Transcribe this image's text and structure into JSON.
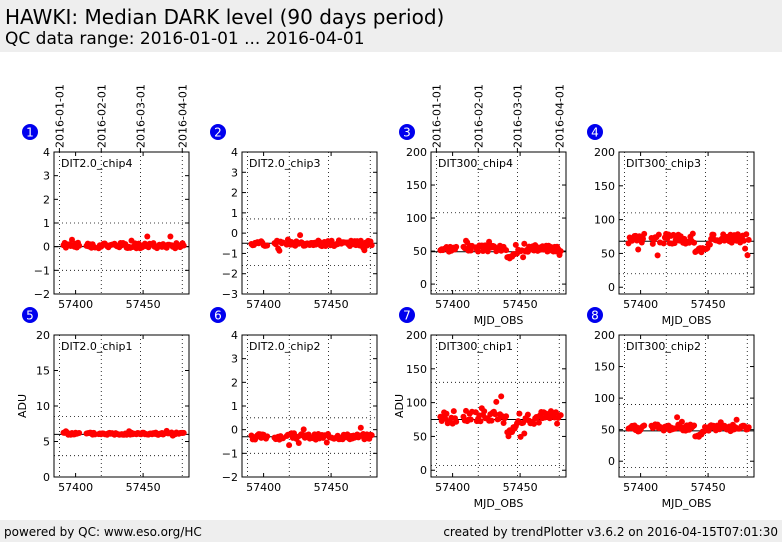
{
  "header": {
    "title": "HAWKI: Median DARK level (90 days period)",
    "subtitle": "QC data range: 2016-01-01 ... 2016-04-01"
  },
  "footer": {
    "left": "powered by QC: www.eso.org/HC",
    "right": "created by trendPlotter v3.6.2 on 2016-04-15T07:01:30"
  },
  "colors": {
    "points": "#ff0000",
    "badge": "#0000ee",
    "badge_text": "#ffffff"
  },
  "chart_data": [
    {
      "type": "scatter",
      "badge": "1",
      "label": "DIT2.0_chip4",
      "ylabel": "",
      "xlabel": "",
      "xlim": [
        57384,
        57484
      ],
      "ylim": [
        -2,
        4
      ],
      "yticks": [
        -2,
        -1,
        0,
        1,
        2,
        3,
        4
      ],
      "xticks": [
        57400,
        57450
      ],
      "ydotted": [
        -1,
        1
      ],
      "refline": 0,
      "center": 0.05,
      "amp": 0.12,
      "dip": null,
      "seed": 1,
      "date_ticks": [
        {
          "mjd": 57388,
          "label": "2016-01-01"
        },
        {
          "mjd": 57419,
          "label": "2016-02-01"
        },
        {
          "mjd": 57448,
          "label": "2016-03-01"
        },
        {
          "mjd": 57479,
          "label": "2016-04-01"
        }
      ]
    },
    {
      "type": "scatter",
      "badge": "2",
      "label": "DIT2.0_chip3",
      "ylabel": "",
      "xlabel": "",
      "xlim": [
        57384,
        57484
      ],
      "ylim": [
        -3,
        4
      ],
      "yticks": [
        -3,
        -2,
        -1,
        0,
        1,
        2,
        3,
        4
      ],
      "xticks": [
        57400,
        57450
      ],
      "ydotted": [
        -1.6,
        0.7
      ],
      "refline": -0.5,
      "center": -0.5,
      "amp": 0.14,
      "dip": null,
      "seed": 2,
      "date_ticks": []
    },
    {
      "type": "scatter",
      "badge": "3",
      "label": "DIT300_chip4",
      "ylabel": "",
      "xlabel": "MJD_OBS",
      "xlim": [
        57384,
        57484
      ],
      "ylim": [
        -15,
        200
      ],
      "yticks": [
        0,
        50,
        100,
        150,
        200
      ],
      "xticks": [
        57400,
        57450
      ],
      "ydotted": [
        -10,
        108
      ],
      "refline": 49,
      "center": 54,
      "amp": 5,
      "dip": {
        "start": 57440,
        "end": 57448,
        "value": 38
      },
      "seed": 3,
      "date_ticks": [
        {
          "mjd": 57388,
          "label": "2016-01-01"
        },
        {
          "mjd": 57419,
          "label": "2016-02-01"
        },
        {
          "mjd": 57448,
          "label": "2016-03-01"
        },
        {
          "mjd": 57479,
          "label": "2016-04-01"
        }
      ]
    },
    {
      "type": "scatter",
      "badge": "4",
      "label": "DIT300_chip3",
      "ylabel": "",
      "xlabel": "MJD_OBS",
      "xlim": [
        57384,
        57484
      ],
      "ylim": [
        -10,
        200
      ],
      "yticks": [
        0,
        50,
        100,
        150,
        200
      ],
      "xticks": [
        57400,
        57450
      ],
      "ydotted": [
        20,
        110
      ],
      "refline": 68,
      "center": 72,
      "amp": 8,
      "dip": {
        "start": 57440,
        "end": 57452,
        "value": 50
      },
      "seed": 4,
      "date_ticks": []
    },
    {
      "type": "scatter",
      "badge": "5",
      "label": "DIT2.0_chip1",
      "ylabel": "ADU",
      "xlabel": "",
      "xlim": [
        57384,
        57484
      ],
      "ylim": [
        0,
        20
      ],
      "yticks": [
        0,
        5,
        10,
        15,
        20
      ],
      "xticks": [
        57400,
        57450
      ],
      "ydotted": [
        3,
        8.5
      ],
      "refline": 6,
      "center": 6.1,
      "amp": 0.18,
      "dip": null,
      "seed": 5,
      "date_ticks": []
    },
    {
      "type": "scatter",
      "badge": "6",
      "label": "DIT2.0_chip2",
      "ylabel": "",
      "xlabel": "",
      "xlim": [
        57384,
        57484
      ],
      "ylim": [
        -2,
        4
      ],
      "yticks": [
        -2,
        -1,
        0,
        1,
        2,
        3,
        4
      ],
      "xticks": [
        57400,
        57450
      ],
      "ydotted": [
        -1,
        0.5
      ],
      "refline": -0.3,
      "center": -0.3,
      "amp": 0.12,
      "dip": null,
      "seed": 6,
      "date_ticks": []
    },
    {
      "type": "scatter",
      "badge": "7",
      "label": "DIT300_chip1",
      "ylabel": "ADU",
      "xlabel": "MJD_OBS",
      "xlim": [
        57384,
        57484
      ],
      "ylim": [
        -10,
        200
      ],
      "yticks": [
        0,
        50,
        100,
        150,
        200
      ],
      "xticks": [
        57400,
        57450
      ],
      "ydotted": [
        7,
        130
      ],
      "refline": 75,
      "center": 78,
      "amp": 10,
      "dip": {
        "start": 57440,
        "end": 57447,
        "value": 52
      },
      "seed": 7,
      "date_ticks": []
    },
    {
      "type": "scatter",
      "badge": "8",
      "label": "DIT300_chip2",
      "ylabel": "",
      "xlabel": "MJD_OBS",
      "xlim": [
        57384,
        57484
      ],
      "ylim": [
        -25,
        200
      ],
      "yticks": [
        0,
        50,
        100,
        150,
        200
      ],
      "xticks": [
        57400,
        57450
      ],
      "ydotted": [
        -10,
        90
      ],
      "refline": 48,
      "center": 53,
      "amp": 6,
      "dip": {
        "start": 57440,
        "end": 57447,
        "value": 36
      },
      "seed": 8,
      "date_ticks": []
    }
  ]
}
